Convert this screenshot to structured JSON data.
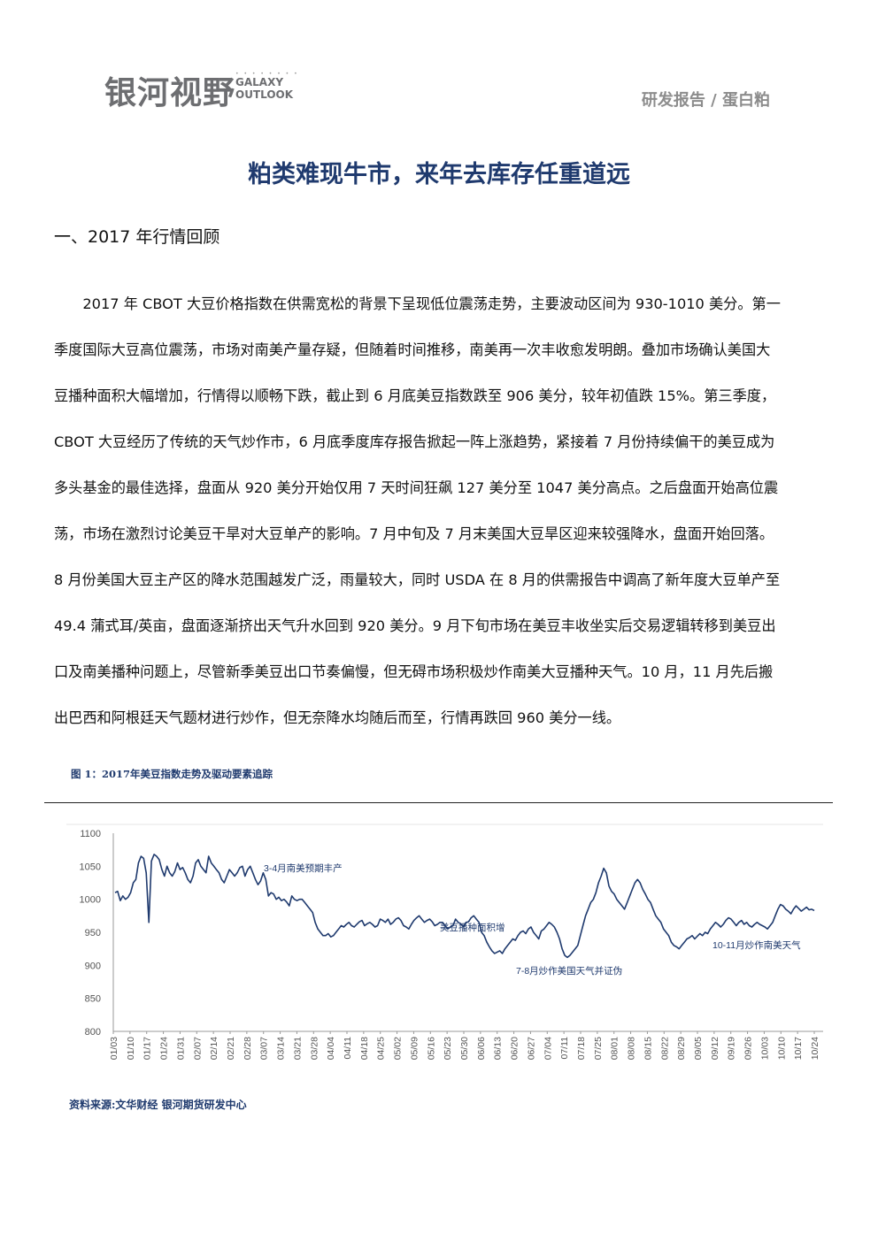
{
  "header": {
    "logo_cn": "银河视野",
    "logo_dots": "• • • • • • • •",
    "logo_en_1": "GALAXY",
    "logo_en_2": "OUTLOOK",
    "breadcrumb": "研发报告 / 蛋白粕"
  },
  "title": "粕类难现牛市，来年去库存任重道远",
  "section_heading": "一、2017 年行情回顾",
  "paragraph_lines": [
    "　　2017 年 CBOT 大豆价格指数在供需宽松的背景下呈现低位震荡走势，主要波动区间为 930-1010 美分。第一",
    "季度国际大豆高位震荡，市场对南美产量存疑，但随着时间推移，南美再一次丰收愈发明朗。叠加市场确认美国大",
    "豆播种面积大幅增加，行情得以顺畅下跌，截止到 6 月底美豆指数跌至 906 美分，较年初值跌 15%。第三季度，",
    "CBOT 大豆经历了传统的天气炒作市，6 月底季度库存报告掀起一阵上涨趋势，紧接着 7 月份持续偏干的美豆成为",
    "多头基金的最佳选择，盘面从 920 美分开始仅用 7 天时间狂飙 127 美分至 1047 美分高点。之后盘面开始高位震",
    "荡，市场在激烈讨论美豆干旱对大豆单产的影响。7 月中旬及 7 月末美国大豆旱区迎来较强降水，盘面开始回落。",
    "8 月份美国大豆主产区的降水范围越发广泛，雨量较大，同时 USDA 在 8 月的供需报告中调高了新年度大豆单产至",
    "49.4 蒲式耳/英亩，盘面逐渐挤出天气升水回到 920 美分。9 月下旬市场在美豆丰收坐实后交易逻辑转移到美豆出",
    "口及南美播种问题上，尽管新季美豆出口节奏偏慢，但无碍市场积极炒作南美大豆播种天气。10 月，11 月先后搬",
    "出巴西和阿根廷天气题材进行炒作，但无奈降水均随后而至，行情再跌回 960 美分一线。"
  ],
  "figure_caption": "图 1：2017年美豆指数走势及驱动要素追踪",
  "source_note": "资料来源:文华财经 银河期货研发中心",
  "chart_data": {
    "type": "line",
    "title": "",
    "xlabel": "",
    "ylabel": "",
    "ylim": [
      800,
      1100
    ],
    "y_ticks": [
      "1100",
      "1050",
      "1000",
      "950",
      "900",
      "850",
      "800"
    ],
    "x_tick_labels": [
      "01/03",
      "01/10",
      "01/17",
      "01/24",
      "01/31",
      "02/07",
      "02/14",
      "02/21",
      "02/28",
      "03/07",
      "03/14",
      "03/21",
      "03/28",
      "04/04",
      "04/11",
      "04/18",
      "04/25",
      "05/02",
      "05/09",
      "05/16",
      "05/23",
      "05/30",
      "06/06",
      "06/13",
      "06/20",
      "06/27",
      "07/04",
      "07/11",
      "07/18",
      "07/25",
      "08/01",
      "08/08",
      "08/15",
      "08/22",
      "08/29",
      "09/05",
      "09/12",
      "09/19",
      "09/26",
      "10/03",
      "10/10",
      "10/17",
      "10/24"
    ],
    "annotations": [
      "3-4月南美预期丰产",
      "美豆播种面积增",
      "7-8月炒作美国天气并证伪",
      "10-11月炒作南美天气"
    ],
    "line_color": "#1f3a6e",
    "series": [
      {
        "values": [
          1010,
          1012,
          998,
          1005,
          1000,
          1003,
          1010,
          1025,
          1030,
          1055,
          1065,
          1062,
          1040,
          965,
          1058,
          1068,
          1065,
          1060,
          1045,
          1035,
          1050,
          1040,
          1035,
          1042,
          1055,
          1045,
          1048,
          1040,
          1030,
          1025,
          1035,
          1055,
          1060,
          1050,
          1045,
          1040,
          1065,
          1055,
          1050,
          1045,
          1040,
          1030,
          1025,
          1035,
          1045,
          1040,
          1035,
          1040,
          1048,
          1050,
          1035,
          1045,
          1050,
          1040,
          1030,
          1022,
          1028,
          1040,
          1030,
          1005,
          1010,
          1008,
          1000,
          1003,
          998,
          1000,
          996,
          990,
          1005,
          1000,
          998,
          1000,
          1000,
          995,
          990,
          985,
          980,
          965,
          955,
          950,
          945,
          945,
          948,
          943,
          945,
          950,
          955,
          960,
          958,
          962,
          965,
          960,
          958,
          962,
          966,
          968,
          960,
          963,
          965,
          962,
          958,
          960,
          970,
          968,
          965,
          970,
          962,
          965,
          970,
          972,
          968,
          960,
          958,
          955,
          962,
          968,
          972,
          975,
          970,
          965,
          968,
          970,
          966,
          960,
          962,
          965,
          965,
          960,
          955,
          958,
          960,
          970,
          965,
          963,
          958,
          965,
          966,
          972,
          975,
          970,
          965,
          950,
          945,
          935,
          928,
          922,
          918,
          920,
          922,
          918,
          925,
          930,
          935,
          940,
          938,
          945,
          950,
          952,
          948,
          955,
          958,
          950,
          945,
          940,
          952,
          955,
          960,
          965,
          962,
          958,
          950,
          940,
          925,
          915,
          912,
          915,
          920,
          925,
          930,
          945,
          960,
          975,
          985,
          995,
          1000,
          1010,
          1025,
          1035,
          1047,
          1040,
          1020,
          1012,
          1008,
          1000,
          995,
          990,
          985,
          995,
          1005,
          1015,
          1025,
          1030,
          1025,
          1015,
          1008,
          1000,
          995,
          985,
          975,
          970,
          965,
          955,
          950,
          945,
          935,
          930,
          928,
          925,
          930,
          935,
          940,
          942,
          945,
          940,
          944,
          948,
          945,
          950,
          948,
          955,
          960,
          965,
          962,
          958,
          962,
          968,
          972,
          970,
          965,
          960,
          965,
          968,
          962,
          965,
          960,
          958,
          962,
          965,
          962,
          960,
          958,
          955,
          960,
          965,
          975,
          985,
          992,
          990,
          985,
          982,
          978,
          985,
          990,
          986,
          982,
          985,
          988,
          984,
          985,
          983
        ]
      }
    ]
  }
}
